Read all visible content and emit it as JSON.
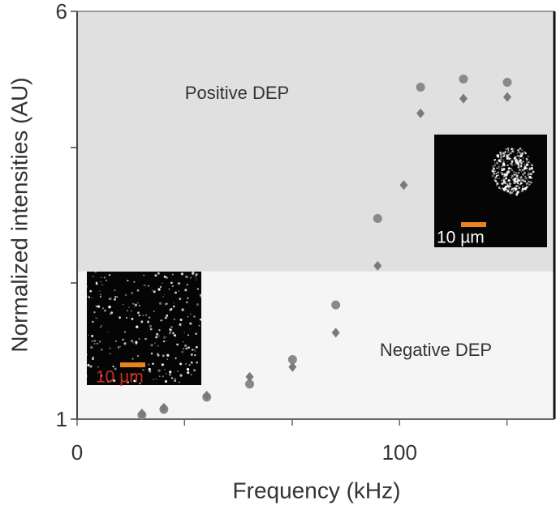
{
  "chart_data": {
    "type": "scatter",
    "xlabel": "Frequency (kHz)",
    "ylabel": "Normalized intensities (AU)",
    "xlim": [
      0,
      148
    ],
    "ylim": [
      1,
      6
    ],
    "xticks": [
      0,
      100
    ],
    "xticks_minor": [
      33.3,
      66.7,
      133.3
    ],
    "yticks": [
      1,
      6
    ],
    "yticks_minor": [
      2.67,
      4.33
    ],
    "regions": [
      {
        "label": "Positive DEP",
        "from": 2.81,
        "to": 6,
        "color": "#e0e0e0"
      },
      {
        "label": "Negative DEP",
        "from": 1,
        "to": 2.81,
        "color": "#f5f5f5"
      }
    ],
    "insets": [
      {
        "label": "10 µm",
        "label_color": "#d03020"
      },
      {
        "label": "10 µm",
        "label_color": "#ffffff"
      }
    ],
    "series": [
      {
        "marker": "circle",
        "color": "#8a8a8a",
        "x": [
          20.1,
          26.9,
          40.2,
          53.5,
          66.8,
          80.2,
          93.2,
          106.5,
          119.8,
          133.4
        ],
        "values": [
          1.05,
          1.12,
          1.27,
          1.43,
          1.73,
          2.4,
          3.46,
          5.07,
          5.17,
          5.13
        ]
      },
      {
        "marker": "diamond",
        "color": "#7a7a7a",
        "x": [
          20.1,
          26.9,
          40.2,
          53.5,
          66.8,
          80.2,
          93.2,
          101.3,
          106.5,
          119.8,
          133.4
        ],
        "values": [
          1.07,
          1.14,
          1.29,
          1.52,
          1.64,
          2.06,
          2.88,
          3.87,
          4.75,
          4.93,
          4.95
        ]
      }
    ]
  }
}
